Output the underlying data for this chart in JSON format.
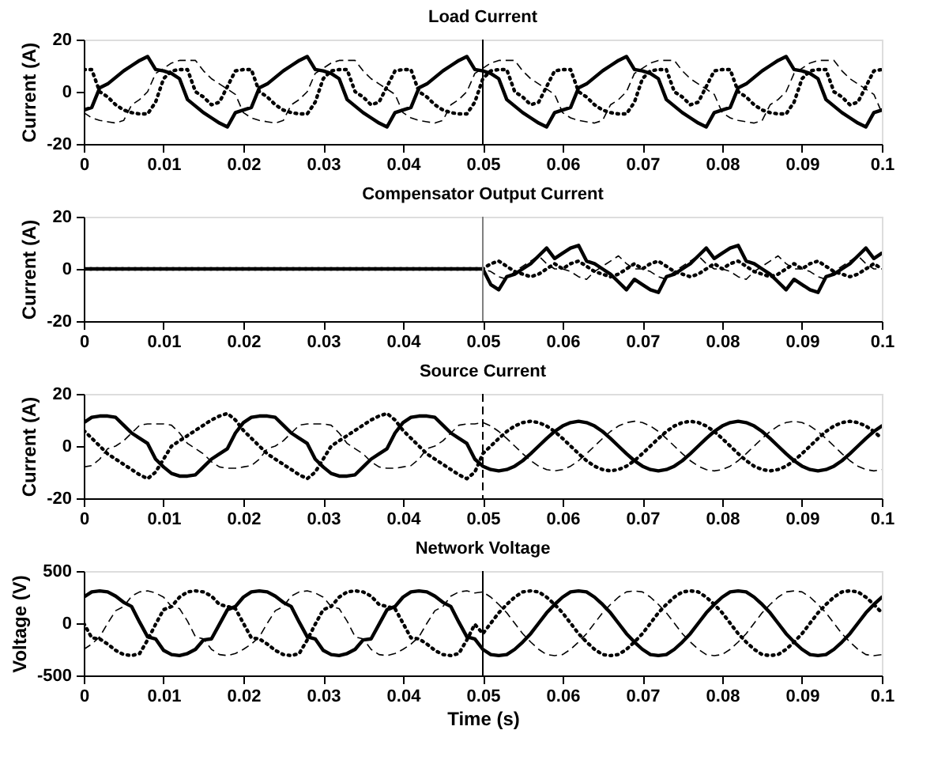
{
  "chart_data": [
    {
      "type": "line",
      "title": "Load Current",
      "ylabel": "Current (A)",
      "xlim": [
        0,
        0.1
      ],
      "xticks": [
        0,
        0.01,
        0.02,
        0.03,
        0.04,
        0.05,
        0.06,
        0.07,
        0.08,
        0.09,
        0.1
      ],
      "ylim": [
        -20,
        20
      ],
      "yticks": [
        -20,
        0,
        20
      ],
      "x": [
        0,
        0.001,
        0.002,
        0.003,
        0.004,
        0.005,
        0.006,
        0.007,
        0.008,
        0.009,
        0.01,
        0.011,
        0.012,
        0.013,
        0.014,
        0.015,
        0.016,
        0.017,
        0.018,
        0.019,
        0.02,
        0.021,
        0.022,
        0.023,
        0.024,
        0.025,
        0.026,
        0.027,
        0.028,
        0.029,
        0.03,
        0.031,
        0.032,
        0.033,
        0.034,
        0.035,
        0.036,
        0.037,
        0.038,
        0.039,
        0.04,
        0.041,
        0.042,
        0.043,
        0.044,
        0.045,
        0.046,
        0.047,
        0.048,
        0.049,
        0.05,
        0.051,
        0.052,
        0.053,
        0.054,
        0.055,
        0.056,
        0.057,
        0.058,
        0.059,
        0.06,
        0.061,
        0.062,
        0.063,
        0.064,
        0.065,
        0.066,
        0.067,
        0.068,
        0.069,
        0.07,
        0.071,
        0.072,
        0.073,
        0.074,
        0.075,
        0.076,
        0.077,
        0.078,
        0.079,
        0.08,
        0.081,
        0.082,
        0.083,
        0.084,
        0.085,
        0.086,
        0.087,
        0.088,
        0.089,
        0.09,
        0.091,
        0.092,
        0.093,
        0.094,
        0.095,
        0.096,
        0.097,
        0.098,
        0.099,
        0.1
      ],
      "series": [
        {
          "color": "#000000",
          "line_style": "solid",
          "values": [
            -7,
            -6,
            1.5,
            3,
            5.5,
            8,
            10,
            12,
            13.5,
            8.5,
            8,
            7,
            5,
            -3,
            -5.5,
            -8,
            -10,
            -12,
            -13.5,
            -8,
            -7,
            -6,
            1.5,
            3,
            5.5,
            8,
            10,
            12,
            13.5,
            8.5,
            8,
            7,
            5,
            -3,
            -5.5,
            -8,
            -10,
            -12,
            -13.5,
            -8,
            -7,
            -6,
            1.5,
            3,
            5.5,
            8,
            10,
            12,
            13.5,
            8.5,
            8,
            7,
            5,
            -3,
            -5.5,
            -8,
            -10,
            -12,
            -13.5,
            -8,
            -7,
            -6,
            1.5,
            3,
            5.5,
            8,
            10,
            12,
            13.5,
            8.5,
            8,
            7,
            5,
            -3,
            -5.5,
            -8,
            -10,
            -12,
            -13.5,
            -8,
            -7,
            -6,
            1.5,
            3,
            5.5,
            8,
            10,
            12,
            13.5,
            8.5,
            8,
            7,
            5,
            -3,
            -5.5,
            -8,
            -10,
            -12,
            -13.5,
            -8,
            -7
          ]
        },
        {
          "color": "#000000",
          "line_style": "dotted",
          "values": [
            8.5,
            8.5,
            0,
            -2,
            -5,
            -7,
            -8,
            -8.5,
            -8.5,
            -4,
            5,
            8,
            8.5,
            8.5,
            0,
            -2,
            -5,
            -4,
            2,
            8,
            8.5,
            8.5,
            0,
            -2,
            -5,
            -7,
            -8,
            -8.5,
            -8.5,
            -4,
            5,
            8,
            8.5,
            8.5,
            0,
            -2,
            -5,
            -4,
            2,
            8,
            8.5,
            8.5,
            0,
            -2,
            -5,
            -7,
            -8,
            -8.5,
            -8.5,
            -4,
            5,
            8,
            8.5,
            8.5,
            0,
            -2,
            -5,
            -4,
            2,
            8,
            8.5,
            8.5,
            0,
            -2,
            -5,
            -7,
            -8,
            -8.5,
            -8.5,
            -4,
            5,
            8,
            8.5,
            8.5,
            0,
            -2,
            -5,
            -4,
            2,
            8,
            8.5,
            8.5,
            0,
            -2,
            -5,
            -7,
            -8,
            -8.5,
            -8.5,
            -4,
            5,
            8,
            8.5,
            8.5,
            0,
            -2,
            -5,
            -4,
            2,
            8,
            8.5
          ]
        },
        {
          "color": "#000000",
          "line_style": "dashed",
          "values": [
            -8,
            -10,
            -11,
            -11.5,
            -12,
            -11,
            -5,
            -3,
            0,
            7,
            9,
            11,
            12,
            12,
            12,
            8,
            5,
            3,
            1,
            -1,
            -8,
            -10,
            -11,
            -11.5,
            -12,
            -11,
            -5,
            -3,
            0,
            7,
            9,
            11,
            12,
            12,
            12,
            8,
            5,
            3,
            1,
            -1,
            -8,
            -10,
            -11,
            -11.5,
            -12,
            -11,
            -5,
            -3,
            0,
            7,
            9,
            11,
            12,
            12,
            12,
            8,
            5,
            3,
            1,
            -1,
            -8,
            -10,
            -11,
            -11.5,
            -12,
            -11,
            -5,
            -3,
            0,
            7,
            9,
            11,
            12,
            12,
            12,
            8,
            5,
            3,
            1,
            -1,
            -8,
            -10,
            -11,
            -11.5,
            -12,
            -11,
            -5,
            -3,
            0,
            7,
            9,
            11,
            12,
            12,
            12,
            8,
            5,
            3,
            1,
            -1,
            -8
          ]
        }
      ],
      "ref_lines": [
        {
          "axis": "x",
          "value": 0.05,
          "color": "#000000",
          "line_style": "solid"
        }
      ]
    },
    {
      "type": "line",
      "title": "Compensator Output Current",
      "ylabel": "Current (A)",
      "xlim": [
        0,
        0.1
      ],
      "xticks": [
        0,
        0.01,
        0.02,
        0.03,
        0.04,
        0.05,
        0.06,
        0.07,
        0.08,
        0.09,
        0.1
      ],
      "ylim": [
        -20,
        20
      ],
      "yticks": [
        -20,
        0,
        20
      ],
      "x": [
        0,
        0.001,
        0.002,
        0.003,
        0.004,
        0.005,
        0.006,
        0.007,
        0.008,
        0.009,
        0.01,
        0.011,
        0.012,
        0.013,
        0.014,
        0.015,
        0.016,
        0.017,
        0.018,
        0.019,
        0.02,
        0.021,
        0.022,
        0.023,
        0.024,
        0.025,
        0.026,
        0.027,
        0.028,
        0.029,
        0.03,
        0.031,
        0.032,
        0.033,
        0.034,
        0.035,
        0.036,
        0.037,
        0.038,
        0.039,
        0.04,
        0.041,
        0.042,
        0.043,
        0.044,
        0.045,
        0.046,
        0.047,
        0.048,
        0.049,
        0.05,
        0.051,
        0.052,
        0.053,
        0.054,
        0.055,
        0.056,
        0.057,
        0.058,
        0.059,
        0.06,
        0.061,
        0.062,
        0.063,
        0.064,
        0.065,
        0.066,
        0.067,
        0.068,
        0.069,
        0.07,
        0.071,
        0.072,
        0.073,
        0.074,
        0.075,
        0.076,
        0.077,
        0.078,
        0.079,
        0.08,
        0.081,
        0.082,
        0.083,
        0.084,
        0.085,
        0.086,
        0.087,
        0.088,
        0.089,
        0.09,
        0.091,
        0.092,
        0.093,
        0.094,
        0.095,
        0.096,
        0.097,
        0.098,
        0.099,
        0.1
      ],
      "series": [
        {
          "color": "#000000",
          "line_style": "solid",
          "values": [
            0,
            0,
            0,
            0,
            0,
            0,
            0,
            0,
            0,
            0,
            0,
            0,
            0,
            0,
            0,
            0,
            0,
            0,
            0,
            0,
            0,
            0,
            0,
            0,
            0,
            0,
            0,
            0,
            0,
            0,
            0,
            0,
            0,
            0,
            0,
            0,
            0,
            0,
            0,
            0,
            0,
            0,
            0,
            0,
            0,
            0,
            0,
            0,
            0,
            0,
            0,
            -6,
            -8,
            -3,
            -2,
            0,
            2,
            5,
            8,
            4,
            6,
            8,
            9,
            3,
            2,
            0,
            -2,
            -5,
            -8,
            -4,
            -6,
            -8,
            -9,
            -3,
            -2,
            0,
            2,
            5,
            8,
            4,
            6,
            8,
            9,
            3,
            2,
            0,
            -2,
            -5,
            -8,
            -4,
            -6,
            -8,
            -9,
            -3,
            -2,
            0,
            2,
            5,
            8,
            4,
            6
          ]
        },
        {
          "color": "#000000",
          "line_style": "dotted",
          "values": [
            0,
            0,
            0,
            0,
            0,
            0,
            0,
            0,
            0,
            0,
            0,
            0,
            0,
            0,
            0,
            0,
            0,
            0,
            0,
            0,
            0,
            0,
            0,
            0,
            0,
            0,
            0,
            0,
            0,
            0,
            0,
            0,
            0,
            0,
            0,
            0,
            0,
            0,
            0,
            0,
            0,
            0,
            0,
            0,
            0,
            0,
            0,
            0,
            0,
            0,
            0,
            2,
            3,
            1,
            -1,
            -2,
            -3,
            -2,
            0,
            2,
            0,
            2,
            3,
            1,
            -1,
            -2,
            -3,
            -2,
            0,
            2,
            0,
            2,
            3,
            1,
            -1,
            -2,
            -3,
            -2,
            0,
            2,
            0,
            2,
            3,
            1,
            -1,
            -2,
            -3,
            -2,
            0,
            2,
            0,
            2,
            3,
            1,
            -1,
            -2,
            -3,
            -2,
            0,
            2,
            0
          ]
        },
        {
          "color": "#000000",
          "line_style": "dashed",
          "values": [
            0,
            0,
            0,
            0,
            0,
            0,
            0,
            0,
            0,
            0,
            0,
            0,
            0,
            0,
            0,
            0,
            0,
            0,
            0,
            0,
            0,
            0,
            0,
            0,
            0,
            0,
            0,
            0,
            0,
            0,
            0,
            0,
            0,
            0,
            0,
            0,
            0,
            0,
            0,
            0,
            0,
            0,
            0,
            0,
            0,
            0,
            0,
            0,
            0,
            0,
            0,
            -1,
            -3,
            -4,
            -1,
            1,
            3,
            5,
            2,
            0,
            0,
            -1,
            -3,
            -4,
            -1,
            1,
            3,
            5,
            2,
            0,
            0,
            -1,
            -3,
            -4,
            -1,
            1,
            3,
            5,
            2,
            0,
            0,
            -1,
            -3,
            -4,
            -1,
            1,
            3,
            5,
            2,
            0,
            0,
            -1,
            -3,
            -4,
            -1,
            1,
            3,
            5,
            2,
            0,
            0
          ]
        }
      ],
      "ref_lines": [
        {
          "axis": "x",
          "value": 0.05,
          "color": "#808080",
          "line_style": "solid"
        }
      ]
    },
    {
      "type": "line",
      "title": "Source Current",
      "ylabel": "Current (A)",
      "xlim": [
        0,
        0.1
      ],
      "xticks": [
        0,
        0.01,
        0.02,
        0.03,
        0.04,
        0.05,
        0.06,
        0.07,
        0.08,
        0.09,
        0.1
      ],
      "ylim": [
        -20,
        20
      ],
      "yticks": [
        -20,
        0,
        20
      ],
      "x": [
        0,
        0.001,
        0.002,
        0.003,
        0.004,
        0.005,
        0.006,
        0.007,
        0.008,
        0.009,
        0.01,
        0.011,
        0.012,
        0.013,
        0.014,
        0.015,
        0.016,
        0.017,
        0.018,
        0.019,
        0.02,
        0.021,
        0.022,
        0.023,
        0.024,
        0.025,
        0.026,
        0.027,
        0.028,
        0.029,
        0.03,
        0.031,
        0.032,
        0.033,
        0.034,
        0.035,
        0.036,
        0.037,
        0.038,
        0.039,
        0.04,
        0.041,
        0.042,
        0.043,
        0.044,
        0.045,
        0.046,
        0.047,
        0.048,
        0.049,
        0.05,
        0.051,
        0.052,
        0.053,
        0.054,
        0.055,
        0.056,
        0.057,
        0.058,
        0.059,
        0.06,
        0.061,
        0.062,
        0.063,
        0.064,
        0.065,
        0.066,
        0.067,
        0.068,
        0.069,
        0.07,
        0.071,
        0.072,
        0.073,
        0.074,
        0.075,
        0.076,
        0.077,
        0.078,
        0.079,
        0.08,
        0.081,
        0.082,
        0.083,
        0.084,
        0.085,
        0.086,
        0.087,
        0.088,
        0.089,
        0.09,
        0.091,
        0.092,
        0.093,
        0.094,
        0.095,
        0.096,
        0.097,
        0.098,
        0.099,
        0.1
      ],
      "series": [
        {
          "color": "#000000",
          "line_style": "solid",
          "values": [
            9,
            11,
            11.5,
            11.5,
            11,
            8,
            5,
            3,
            1,
            -5,
            -8,
            -10.5,
            -11.5,
            -11.5,
            -11,
            -8,
            -5,
            -3,
            -1,
            5,
            9,
            11,
            11.5,
            11.5,
            11,
            8,
            5,
            3,
            1,
            -5,
            -8,
            -10.5,
            -11.5,
            -11.5,
            -11,
            -8,
            -5,
            -3,
            -1,
            5,
            9,
            11,
            11.5,
            11.5,
            11,
            8,
            5,
            3,
            1,
            -5,
            -7.7,
            -9,
            -9.5,
            -9,
            -7.7,
            -5.6,
            -2.9,
            0,
            2.9,
            5.6,
            7.7,
            9,
            9.5,
            9,
            7.7,
            5.6,
            2.9,
            0,
            -2.9,
            -5.6,
            -7.7,
            -9,
            -9.5,
            -9,
            -7.7,
            -5.6,
            -2.9,
            0,
            2.9,
            5.6,
            7.7,
            9,
            9.5,
            9,
            7.7,
            5.6,
            2.9,
            0,
            -2.9,
            -5.6,
            -7.7,
            -9,
            -9.5,
            -9,
            -7.7,
            -5.6,
            -2.9,
            0,
            2.9,
            5.6,
            7.7
          ]
        },
        {
          "color": "#000000",
          "line_style": "dotted",
          "values": [
            6,
            3,
            0,
            -3,
            -5,
            -7,
            -9,
            -11,
            -12.5,
            -10,
            -5,
            0,
            2,
            4,
            6,
            8,
            10,
            11.5,
            12.5,
            10,
            6,
            3,
            0,
            -3,
            -5,
            -7,
            -9,
            -11,
            -12.5,
            -10,
            -5,
            0,
            2,
            4,
            6,
            8,
            10,
            11.5,
            12.5,
            10,
            6,
            3,
            0,
            -3,
            -5,
            -7,
            -9,
            -11,
            -12.5,
            -10,
            -2.9,
            0,
            2.9,
            5.6,
            7.7,
            9,
            9.5,
            9,
            7.7,
            5.6,
            2.9,
            0,
            -2.9,
            -5.6,
            -7.7,
            -9,
            -9.5,
            -9,
            -7.7,
            -5.6,
            -2.9,
            0,
            2.9,
            5.6,
            7.7,
            9,
            9.5,
            9,
            7.7,
            5.6,
            2.9,
            0,
            -2.9,
            -5.6,
            -7.7,
            -9,
            -9.5,
            -9,
            -7.7,
            -5.6,
            -2.9,
            0,
            2.9,
            5.6,
            7.7,
            9,
            9.5,
            9,
            7.7,
            5.6,
            2.9
          ]
        },
        {
          "color": "#000000",
          "line_style": "dashed",
          "values": [
            -8,
            -7.5,
            -5,
            -1,
            0,
            2,
            5,
            8,
            8.5,
            8.5,
            8.5,
            8,
            5,
            1,
            -1,
            -3,
            -6,
            -8,
            -8.5,
            -8.5,
            -8,
            -7.5,
            -5,
            -1,
            0,
            2,
            5,
            8,
            8.5,
            8.5,
            8.5,
            8,
            5,
            1,
            -1,
            -3,
            -6,
            -8,
            -8.5,
            -8.5,
            -8,
            -7.5,
            -5,
            -1,
            0,
            2,
            5,
            8,
            8.5,
            8.5,
            9,
            7.7,
            5.6,
            2.9,
            0,
            -2.9,
            -5.6,
            -7.7,
            -9,
            -9.5,
            -9,
            -7.7,
            -5.6,
            -2.9,
            0,
            2.9,
            5.6,
            7.7,
            9,
            9.5,
            9,
            7.7,
            5.6,
            2.9,
            0,
            -2.9,
            -5.6,
            -7.7,
            -9,
            -9.5,
            -9,
            -7.7,
            -5.6,
            -2.9,
            0,
            2.9,
            5.6,
            7.7,
            9,
            9.5,
            9,
            7.7,
            5.6,
            2.9,
            0,
            -2.9,
            -5.6,
            -7.7,
            -9,
            -9.5,
            -9
          ]
        }
      ],
      "ref_lines": [
        {
          "axis": "x",
          "value": 0.05,
          "color": "#000000",
          "line_style": "dashed"
        }
      ]
    },
    {
      "type": "line",
      "title": "Network Voltage",
      "ylabel": "Voltage (V)",
      "xlabel": "Time (s)",
      "xlim": [
        0,
        0.1
      ],
      "xticks": [
        0,
        0.01,
        0.02,
        0.03,
        0.04,
        0.05,
        0.06,
        0.07,
        0.08,
        0.09,
        0.1
      ],
      "ylim": [
        -500,
        500
      ],
      "yticks": [
        -500,
        0,
        500
      ],
      "x": [
        0,
        0.001,
        0.002,
        0.003,
        0.004,
        0.005,
        0.006,
        0.007,
        0.008,
        0.009,
        0.01,
        0.011,
        0.012,
        0.013,
        0.014,
        0.015,
        0.016,
        0.017,
        0.018,
        0.019,
        0.02,
        0.021,
        0.022,
        0.023,
        0.024,
        0.025,
        0.026,
        0.027,
        0.028,
        0.029,
        0.03,
        0.031,
        0.032,
        0.033,
        0.034,
        0.035,
        0.036,
        0.037,
        0.038,
        0.039,
        0.04,
        0.041,
        0.042,
        0.043,
        0.044,
        0.045,
        0.046,
        0.047,
        0.048,
        0.049,
        0.05,
        0.051,
        0.052,
        0.053,
        0.054,
        0.055,
        0.056,
        0.057,
        0.058,
        0.059,
        0.06,
        0.061,
        0.062,
        0.063,
        0.064,
        0.065,
        0.066,
        0.067,
        0.068,
        0.069,
        0.07,
        0.071,
        0.072,
        0.073,
        0.074,
        0.075,
        0.076,
        0.077,
        0.078,
        0.079,
        0.08,
        0.081,
        0.082,
        0.083,
        0.084,
        0.085,
        0.086,
        0.087,
        0.088,
        0.089,
        0.09,
        0.091,
        0.092,
        0.093,
        0.094,
        0.095,
        0.096,
        0.097,
        0.098,
        0.099,
        0.1
      ],
      "series": [
        {
          "color": "#000000",
          "line_style": "solid",
          "values": [
            250,
            300,
            310,
            300,
            260,
            200,
            160,
            10,
            -130,
            -150,
            -260,
            -300,
            -310,
            -290,
            -250,
            -160,
            -150,
            -10,
            130,
            160,
            250,
            300,
            310,
            300,
            260,
            200,
            160,
            10,
            -130,
            -150,
            -260,
            -300,
            -310,
            -290,
            -250,
            -160,
            -150,
            -10,
            130,
            160,
            250,
            300,
            310,
            300,
            260,
            200,
            160,
            10,
            -130,
            -150,
            -250,
            -300,
            -310,
            -300,
            -250,
            -180,
            -100,
            0,
            100,
            180,
            250,
            300,
            310,
            300,
            250,
            180,
            100,
            0,
            -100,
            -180,
            -250,
            -300,
            -310,
            -300,
            -250,
            -180,
            -100,
            0,
            100,
            180,
            250,
            300,
            310,
            300,
            250,
            180,
            100,
            0,
            -100,
            -180,
            -250,
            -300,
            -310,
            -300,
            -250,
            -180,
            -100,
            0,
            100,
            180,
            250
          ]
        },
        {
          "color": "#000000",
          "line_style": "dotted",
          "values": [
            0,
            -140,
            -150,
            -200,
            -260,
            -300,
            -310,
            -290,
            -160,
            -10,
            130,
            160,
            250,
            300,
            310,
            300,
            260,
            180,
            160,
            140,
            0,
            -140,
            -150,
            -200,
            -260,
            -300,
            -310,
            -290,
            -160,
            -10,
            130,
            160,
            250,
            300,
            310,
            300,
            260,
            180,
            160,
            140,
            0,
            -140,
            -150,
            -200,
            -260,
            -300,
            -310,
            -290,
            -160,
            -10,
            -100,
            0,
            100,
            180,
            250,
            300,
            310,
            300,
            250,
            180,
            100,
            0,
            -100,
            -180,
            -250,
            -300,
            -310,
            -300,
            -250,
            -180,
            -100,
            0,
            100,
            180,
            250,
            300,
            310,
            300,
            250,
            180,
            100,
            0,
            -100,
            -180,
            -250,
            -300,
            -310,
            -300,
            -250,
            -180,
            -100,
            0,
            100,
            180,
            250,
            300,
            310,
            300,
            250,
            180,
            100
          ]
        },
        {
          "color": "#000000",
          "line_style": "dashed",
          "values": [
            -250,
            -200,
            -130,
            0,
            120,
            160,
            260,
            300,
            310,
            290,
            250,
            160,
            140,
            20,
            -130,
            -150,
            -250,
            -300,
            -310,
            -290,
            -250,
            -200,
            -130,
            0,
            120,
            160,
            260,
            300,
            310,
            290,
            250,
            160,
            140,
            20,
            -130,
            -150,
            -250,
            -300,
            -310,
            -290,
            -250,
            -200,
            -130,
            0,
            120,
            160,
            260,
            300,
            310,
            290,
            300,
            250,
            180,
            100,
            0,
            -100,
            -180,
            -250,
            -300,
            -310,
            -300,
            -250,
            -180,
            -100,
            0,
            100,
            180,
            250,
            300,
            310,
            300,
            250,
            180,
            100,
            0,
            -100,
            -180,
            -250,
            -300,
            -310,
            -300,
            -250,
            -180,
            -100,
            0,
            100,
            180,
            250,
            300,
            310,
            300,
            250,
            180,
            100,
            0,
            -100,
            -180,
            -250,
            -300,
            -310,
            -300
          ]
        }
      ],
      "ref_lines": [
        {
          "axis": "x",
          "value": 0.05,
          "color": "#000000",
          "line_style": "solid"
        }
      ]
    }
  ]
}
